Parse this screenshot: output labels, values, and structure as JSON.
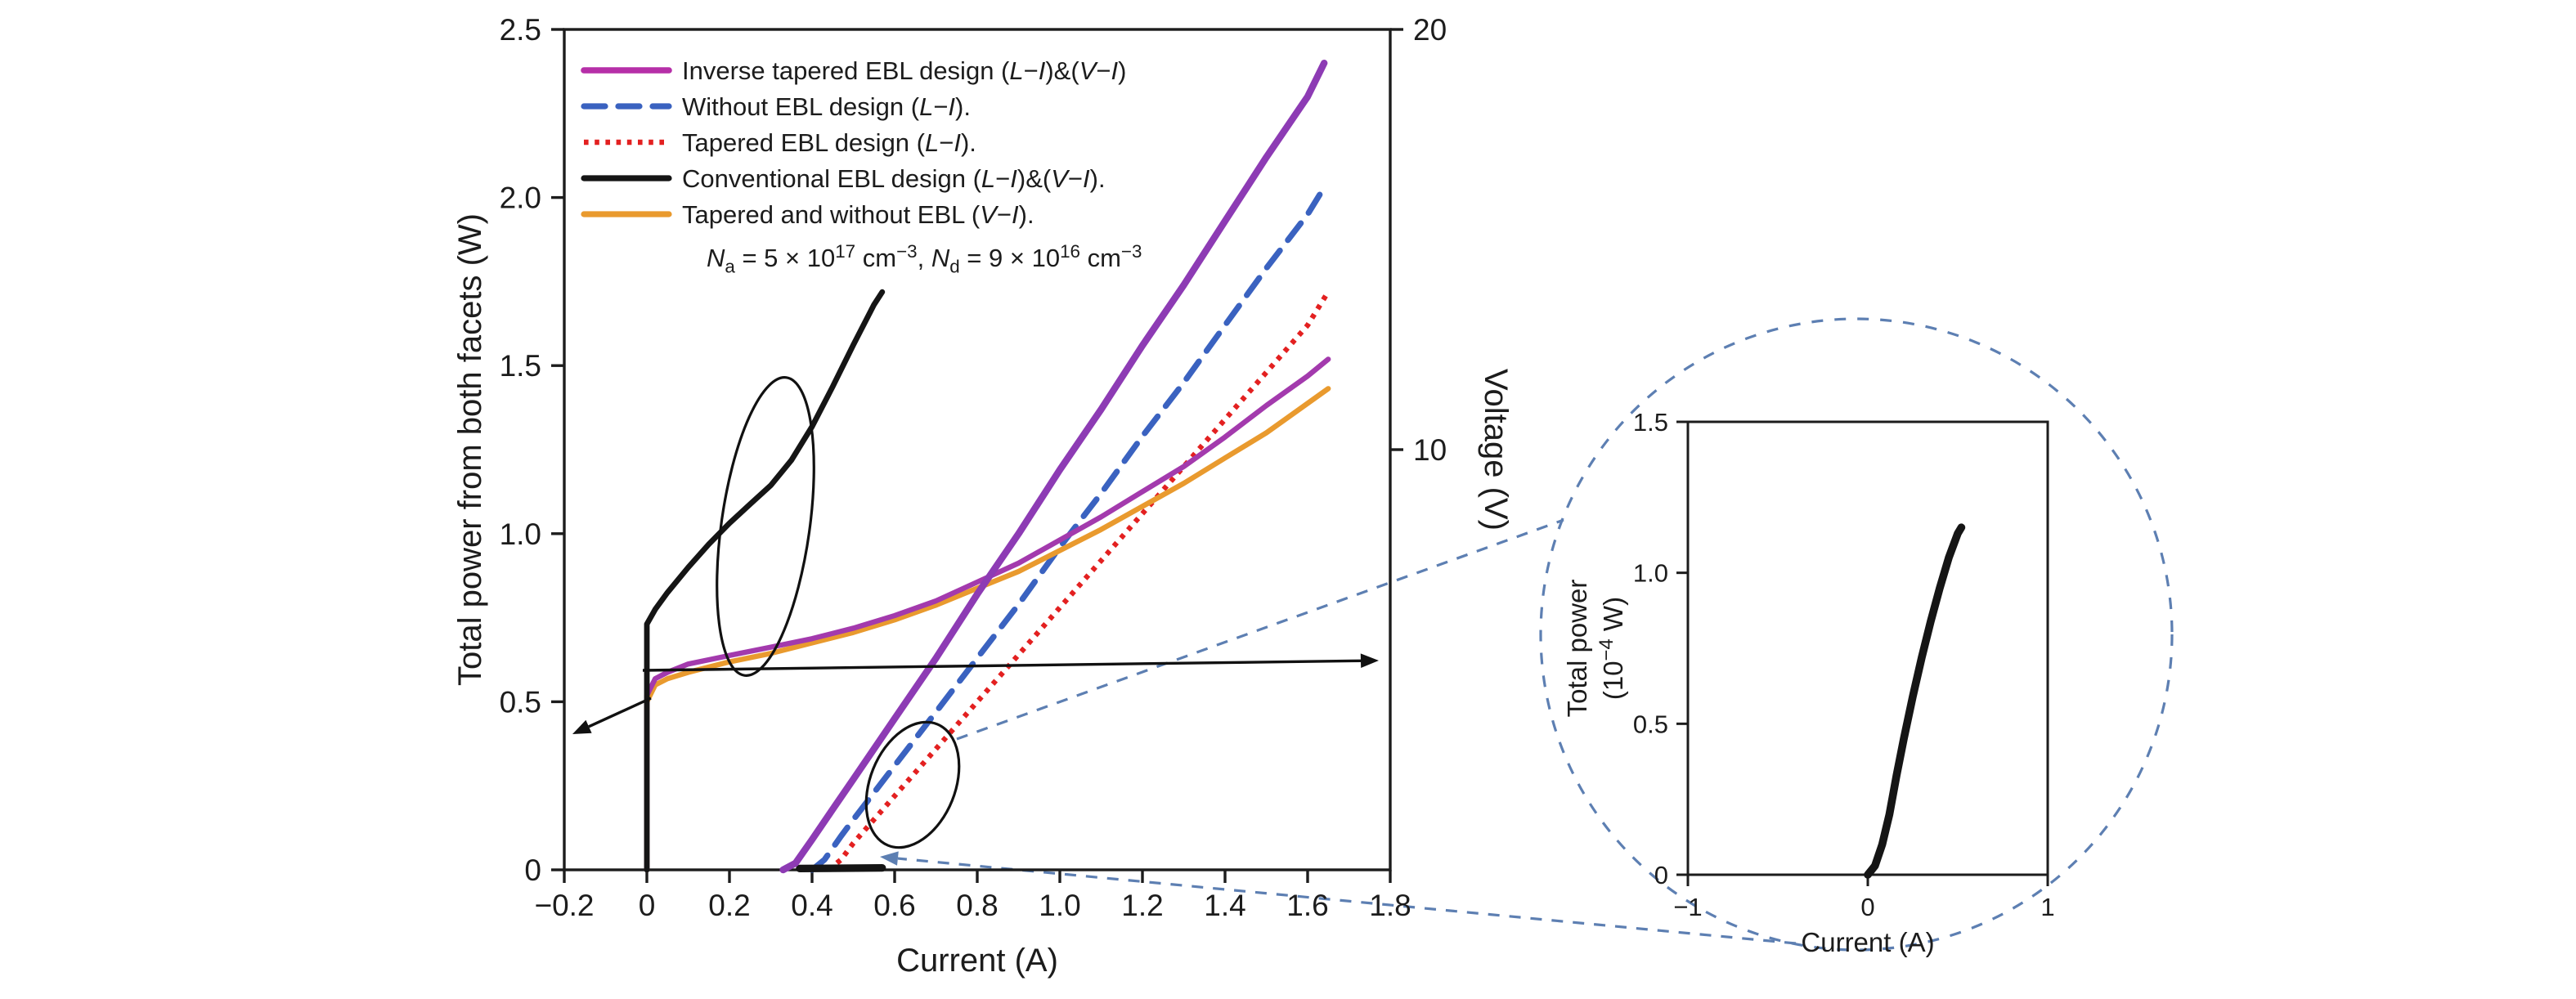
{
  "style": {
    "background": "#ffffff",
    "text_color": "#1c1c1c",
    "axis_color": "#1c1c1c",
    "annotation_blue": "#5d7fb2",
    "annotation_black": "#111111"
  },
  "chart_data": [
    {
      "id": "main",
      "type": "line",
      "xlabel": "Current (A)",
      "ylabel_left": "Total power from both facets (W)",
      "ylabel_right": "Voltage (V)",
      "xlim": [
        -0.2,
        1.8
      ],
      "ylim_left": [
        0,
        2.5
      ],
      "ylim_right": [
        0,
        20
      ],
      "grid": false,
      "legend_position": "top-left-inside",
      "x_ticks": [
        {
          "v": -0.2,
          "label": "−0.2"
        },
        {
          "v": 0,
          "label": "0"
        },
        {
          "v": 0.2,
          "label": "0.2"
        },
        {
          "v": 0.4,
          "label": "0.4"
        },
        {
          "v": 0.6,
          "label": "0.6"
        },
        {
          "v": 0.8,
          "label": "0.8"
        },
        {
          "v": 1.0,
          "label": "1.0"
        },
        {
          "v": 1.2,
          "label": "1.2"
        },
        {
          "v": 1.4,
          "label": "1.4"
        },
        {
          "v": 1.6,
          "label": "1.6"
        },
        {
          "v": 1.8,
          "label": "1.8"
        }
      ],
      "y_ticks_left": [
        {
          "v": 0,
          "label": "0"
        },
        {
          "v": 0.5,
          "label": "0.5"
        },
        {
          "v": 1.0,
          "label": "1.0"
        },
        {
          "v": 1.5,
          "label": "1.5"
        },
        {
          "v": 2.0,
          "label": "2.0"
        },
        {
          "v": 2.5,
          "label": "2.5"
        }
      ],
      "y_ticks_right": [
        {
          "v": 10,
          "label": "10"
        },
        {
          "v": 20,
          "label": "20"
        }
      ],
      "doping_annotation": [
        {
          "t": "N",
          "i": true
        },
        {
          "t": "a",
          "sub": true
        },
        {
          "t": " = 5 × 10"
        },
        {
          "t": "17",
          "sup": true
        },
        {
          "t": " cm"
        },
        {
          "t": "−3",
          "sup": true
        },
        {
          "t": ", "
        },
        {
          "t": "N",
          "i": true
        },
        {
          "t": "d",
          "sub": true
        },
        {
          "t": " = 9 × 10"
        },
        {
          "t": "16",
          "sup": true
        },
        {
          "t": " cm"
        },
        {
          "t": "−3",
          "sup": true
        }
      ],
      "legend": [
        {
          "color": "#b62fa8",
          "width": 3.8,
          "dash": null,
          "label": [
            {
              "t": "Inverse tapered EBL design ("
            },
            {
              "t": "L",
              "i": true
            },
            {
              "t": "−"
            },
            {
              "t": "I",
              "i": true
            },
            {
              "t": ")&("
            },
            {
              "t": "V",
              "i": true
            },
            {
              "t": "−"
            },
            {
              "t": "I",
              "i": true
            },
            {
              "t": ")"
            }
          ]
        },
        {
          "color": "#3a62c0",
          "width": 3.6,
          "dash": "13 8",
          "label": [
            {
              "t": "Without EBL design ("
            },
            {
              "t": "L",
              "i": true
            },
            {
              "t": "−"
            },
            {
              "t": "I",
              "i": true
            },
            {
              "t": ")."
            }
          ]
        },
        {
          "color": "#e32020",
          "width": 3.2,
          "dash": "2.8 3.8",
          "label": [
            {
              "t": "Tapered EBL design ("
            },
            {
              "t": "L",
              "i": true
            },
            {
              "t": "−"
            },
            {
              "t": "I",
              "i": true
            },
            {
              "t": ")."
            }
          ]
        },
        {
          "color": "#151515",
          "width": 3.6,
          "dash": null,
          "label": [
            {
              "t": "Conventional EBL design ("
            },
            {
              "t": "L",
              "i": true
            },
            {
              "t": "−"
            },
            {
              "t": "I",
              "i": true
            },
            {
              "t": ")&("
            },
            {
              "t": "V",
              "i": true
            },
            {
              "t": "−"
            },
            {
              "t": "I",
              "i": true
            },
            {
              "t": ")."
            }
          ]
        },
        {
          "color": "#e99a2e",
          "width": 3.6,
          "dash": null,
          "label": [
            {
              "t": "Tapered and without EBL ("
            },
            {
              "t": "V",
              "i": true
            },
            {
              "t": "−"
            },
            {
              "t": "I",
              "i": true
            },
            {
              "t": ")."
            }
          ]
        }
      ],
      "series": [
        {
          "name": "tapered-ebl-li",
          "axis": "left",
          "color": "#e32020",
          "width": 3.2,
          "dash": "2.8 3.8",
          "points": [
            [
              0.44,
              0
            ],
            [
              0.47,
              0.03
            ],
            [
              0.5,
              0.08
            ],
            [
              0.6,
              0.22
            ],
            [
              0.7,
              0.36
            ],
            [
              0.8,
              0.5
            ],
            [
              0.9,
              0.64
            ],
            [
              1.0,
              0.78
            ],
            [
              1.1,
              0.92
            ],
            [
              1.2,
              1.06
            ],
            [
              1.3,
              1.2
            ],
            [
              1.4,
              1.34
            ],
            [
              1.5,
              1.48
            ],
            [
              1.6,
              1.62
            ],
            [
              1.65,
              1.72
            ]
          ]
        },
        {
          "name": "without-ebl-li",
          "axis": "left",
          "color": "#3a62c0",
          "width": 3.6,
          "dash": "13 8",
          "points": [
            [
              0.4,
              0
            ],
            [
              0.43,
              0.03
            ],
            [
              0.47,
              0.1
            ],
            [
              0.5,
              0.15
            ],
            [
              0.6,
              0.31
            ],
            [
              0.7,
              0.47
            ],
            [
              0.8,
              0.63
            ],
            [
              0.9,
              0.79
            ],
            [
              1.0,
              0.96
            ],
            [
              1.1,
              1.12
            ],
            [
              1.2,
              1.29
            ],
            [
              1.3,
              1.45
            ],
            [
              1.4,
              1.62
            ],
            [
              1.5,
              1.79
            ],
            [
              1.6,
              1.95
            ],
            [
              1.63,
              2.01
            ]
          ]
        },
        {
          "name": "tapered-and-without-ebl-vi",
          "axis": "right",
          "color": "#e99a2e",
          "width": 3.2,
          "dash": null,
          "points": [
            [
              0,
              0
            ],
            [
              0,
              4.0
            ],
            [
              0.02,
              4.4
            ],
            [
              0.05,
              4.55
            ],
            [
              0.1,
              4.7
            ],
            [
              0.2,
              4.95
            ],
            [
              0.3,
              5.15
            ],
            [
              0.4,
              5.4
            ],
            [
              0.5,
              5.65
            ],
            [
              0.6,
              5.95
            ],
            [
              0.7,
              6.3
            ],
            [
              0.8,
              6.7
            ],
            [
              0.9,
              7.1
            ],
            [
              1.0,
              7.6
            ],
            [
              1.1,
              8.1
            ],
            [
              1.2,
              8.65
            ],
            [
              1.3,
              9.2
            ],
            [
              1.4,
              9.8
            ],
            [
              1.5,
              10.4
            ],
            [
              1.6,
              11.1
            ],
            [
              1.65,
              11.45
            ]
          ]
        },
        {
          "name": "inverse-tapered-ebl-vi",
          "axis": "right",
          "color": "#a33aad",
          "width": 3.2,
          "dash": null,
          "points": [
            [
              0,
              0
            ],
            [
              0,
              4.15
            ],
            [
              0.02,
              4.55
            ],
            [
              0.05,
              4.7
            ],
            [
              0.1,
              4.9
            ],
            [
              0.2,
              5.1
            ],
            [
              0.3,
              5.3
            ],
            [
              0.4,
              5.5
            ],
            [
              0.5,
              5.75
            ],
            [
              0.6,
              6.05
            ],
            [
              0.7,
              6.4
            ],
            [
              0.8,
              6.85
            ],
            [
              0.9,
              7.3
            ],
            [
              1.0,
              7.85
            ],
            [
              1.1,
              8.4
            ],
            [
              1.2,
              9.0
            ],
            [
              1.3,
              9.6
            ],
            [
              1.4,
              10.3
            ],
            [
              1.5,
              11.05
            ],
            [
              1.6,
              11.75
            ],
            [
              1.65,
              12.15
            ]
          ]
        },
        {
          "name": "conventional-ebl-vi",
          "axis": "right",
          "color": "#151515",
          "width": 3.4,
          "dash": null,
          "points": [
            [
              0,
              0
            ],
            [
              0,
              5.85
            ],
            [
              0.02,
              6.2
            ],
            [
              0.05,
              6.6
            ],
            [
              0.1,
              7.2
            ],
            [
              0.15,
              7.75
            ],
            [
              0.2,
              8.25
            ],
            [
              0.25,
              8.7
            ],
            [
              0.3,
              9.15
            ],
            [
              0.35,
              9.75
            ],
            [
              0.4,
              10.55
            ],
            [
              0.45,
              11.5
            ],
            [
              0.5,
              12.5
            ],
            [
              0.55,
              13.45
            ],
            [
              0.57,
              13.75
            ]
          ]
        },
        {
          "name": "conventional-ebl-li",
          "axis": "left",
          "color": "#151515",
          "width": 4.6,
          "dash": null,
          "points": [
            [
              0.37,
              0.004
            ],
            [
              0.57,
              0.006
            ]
          ]
        },
        {
          "name": "inverse-tapered-ebl-li",
          "axis": "left",
          "color": "#8d3bb4",
          "width": 4.2,
          "dash": null,
          "points": [
            [
              0.33,
              0
            ],
            [
              0.36,
              0.02
            ],
            [
              0.4,
              0.09
            ],
            [
              0.45,
              0.18
            ],
            [
              0.5,
              0.27
            ],
            [
              0.6,
              0.45
            ],
            [
              0.7,
              0.63
            ],
            [
              0.8,
              0.82
            ],
            [
              0.9,
              1.0
            ],
            [
              1.0,
              1.19
            ],
            [
              1.1,
              1.37
            ],
            [
              1.2,
              1.56
            ],
            [
              1.3,
              1.74
            ],
            [
              1.4,
              1.93
            ],
            [
              1.5,
              2.12
            ],
            [
              1.6,
              2.3
            ],
            [
              1.64,
              2.4
            ]
          ]
        }
      ]
    },
    {
      "id": "inset",
      "type": "line",
      "xlabel": "Current (A)",
      "ylabel_lines": [
        [
          {
            "t": "Total power"
          }
        ],
        [
          {
            "t": "(10"
          },
          {
            "t": "−4",
            "sup": true
          },
          {
            "t": " W)"
          }
        ]
      ],
      "xlim": [
        -1,
        1
      ],
      "ylim": [
        0,
        1.5
      ],
      "grid": false,
      "x_ticks": [
        {
          "v": -1,
          "label": "−1"
        },
        {
          "v": 0,
          "label": "0"
        },
        {
          "v": 1,
          "label": "1"
        }
      ],
      "y_ticks": [
        {
          "v": 0,
          "label": "0"
        },
        {
          "v": 0.5,
          "label": "0.5"
        },
        {
          "v": 1.0,
          "label": "1.0"
        },
        {
          "v": 1.5,
          "label": "1.5"
        }
      ],
      "series": [
        {
          "name": "conventional-ebl-li-zoom",
          "color": "#151515",
          "width": 4.8,
          "dash": null,
          "points": [
            [
              0,
              0
            ],
            [
              0.04,
              0.03
            ],
            [
              0.08,
              0.1
            ],
            [
              0.12,
              0.2
            ],
            [
              0.16,
              0.33
            ],
            [
              0.2,
              0.45
            ],
            [
              0.25,
              0.59
            ],
            [
              0.3,
              0.72
            ],
            [
              0.35,
              0.84
            ],
            [
              0.4,
              0.95
            ],
            [
              0.45,
              1.05
            ],
            [
              0.5,
              1.13
            ],
            [
              0.52,
              1.15
            ]
          ]
        }
      ]
    }
  ]
}
